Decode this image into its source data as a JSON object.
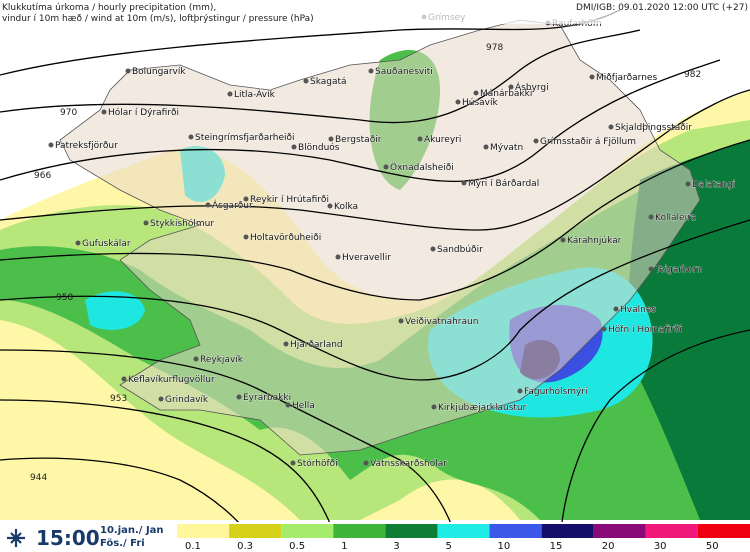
{
  "header": {
    "line1": "Klukkutíma úrkoma / hourly precipitation (mm),",
    "line2": "vindur í 10m hæð / wind at 10m (m/s), loftþrýstingur / pressure (hPa)",
    "source": "DMI/IGB: 09.01.2020 12:00 UTC (+27)"
  },
  "stations": [
    "Grímsey",
    "Raufarhöfn",
    "Bolungarvík",
    "Mánárbakki",
    "Sauðanesviti",
    "Skagatá",
    "Litla-Ávík",
    "Ásbyrgi",
    "Miðfjarðarnes",
    "Húsavík",
    "Hólar í Dýrafirði",
    "Steingrímsfjarðarheiði",
    "Patreksfjörður",
    "Bergstaðir",
    "Akureyri",
    "Blönduós",
    "Mývatn",
    "Grímsstaðir á Fjöllum",
    "Skjaldþingsstaðir",
    "Öxnadalsheiði",
    "Mýri í Bárðardal",
    "Dalatangi",
    "Reykir í Hrútafirði",
    "Ásgarður",
    "Kolka",
    "Kollaleira",
    "Stykkishólmur",
    "Kárahnjúkar",
    "Sandbúðir",
    "Holtavörðuheiði",
    "Gufuskálar",
    "Hveravellir",
    "Teigarhorn",
    "Hvalnes",
    "Höfn í Hornafirði",
    "Veiðivatnahraun",
    "Hjarðarland",
    "Reykjavík",
    "Keflavíkurflugvöllur",
    "Kirkjubæjarklaustur",
    "Fagurhólsmýri",
    "Grindavík",
    "Eyrarbakki",
    "Hella",
    "Stórhöfði",
    "Vatnsskarðshólar"
  ],
  "isobar_labels": [
    "970",
    "966",
    "958",
    "953",
    "944",
    "978",
    "982"
  ],
  "footer": {
    "time": "15:00",
    "date": "10.jan./ Jan",
    "day": "Fös./ Fri"
  },
  "legend": [
    "0.1",
    "0.3",
    "0.5",
    "1",
    "3",
    "5",
    "10",
    "15",
    "20",
    "30",
    "50"
  ]
}
